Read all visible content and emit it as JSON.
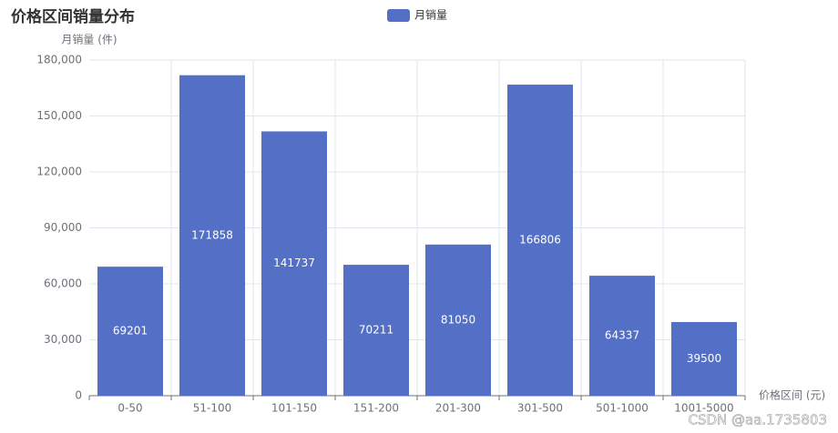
{
  "chart_data": {
    "type": "bar",
    "title": "价格区间销量分布",
    "x_label": "价格区间 (元)",
    "y_label": "月销量 (件)",
    "categories": [
      "0-50",
      "51-100",
      "101-150",
      "151-200",
      "201-300",
      "301-500",
      "501-1000",
      "1001-5000"
    ],
    "series": [
      {
        "name": "月销量",
        "color": "#5470c6",
        "values": [
          69201,
          171858,
          141737,
          70211,
          81050,
          166806,
          64337,
          39500
        ]
      }
    ],
    "ylim": [
      0,
      180000
    ],
    "yticks": [
      0,
      {
        "value": 30000,
        "label": "30,000"
      },
      {
        "value": 60000,
        "label": "60,000"
      },
      {
        "value": 90000,
        "label": "90,000"
      },
      {
        "value": 120000,
        "label": "120,000"
      },
      {
        "value": 150000,
        "label": "150,000"
      },
      {
        "value": 180000,
        "label": "180,000"
      }
    ],
    "grid": true,
    "legend": "top",
    "watermark": "CSDN @aa.1735803"
  }
}
